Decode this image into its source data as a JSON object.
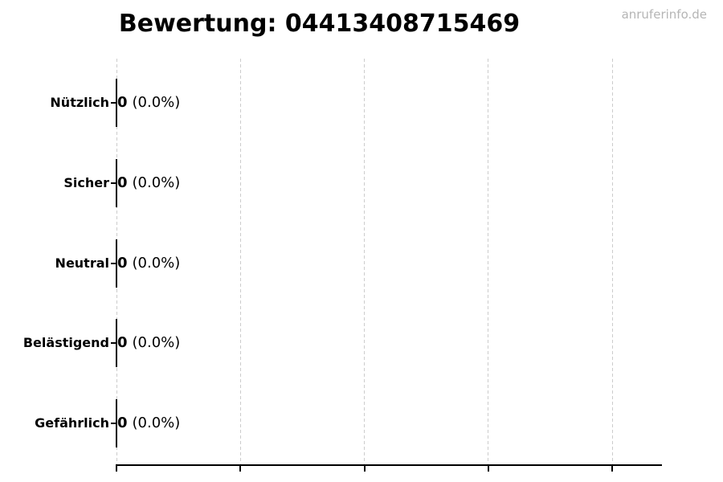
{
  "watermark": "anruferinfo.de",
  "chart_data": {
    "type": "bar",
    "orientation": "horizontal",
    "title": "Bewertung: 04413408715469",
    "categories": [
      "Nützlich",
      "Sicher",
      "Neutral",
      "Belästigend",
      "Gefährlich"
    ],
    "values": [
      0,
      0,
      0,
      0,
      0
    ],
    "rows": [
      {
        "label": "Nützlich",
        "count": "0",
        "percent": "(0.0%)"
      },
      {
        "label": "Sicher",
        "count": "0",
        "percent": "(0.0%)"
      },
      {
        "label": "Neutral",
        "count": "0",
        "percent": "(0.0%)"
      },
      {
        "label": "Belästigend",
        "count": "0",
        "percent": "(0.0%)"
      },
      {
        "label": "Gefährlich",
        "count": "0",
        "percent": "(0.0%)"
      }
    ],
    "xlabel": "",
    "ylabel": "",
    "xlim": [
      0,
      1.1
    ],
    "xticks": [
      0,
      0.25,
      0.5,
      0.75,
      1
    ],
    "x_tick_labels_visible": false,
    "grid": {
      "axis": "x",
      "style": "dashed"
    },
    "legend": "none"
  },
  "colors": {
    "background": "#ffffff",
    "text": "#000000",
    "grid": "#cccccc",
    "axis": "#000000",
    "bar_edge": "#000000",
    "watermark": "#b5b5b5"
  }
}
